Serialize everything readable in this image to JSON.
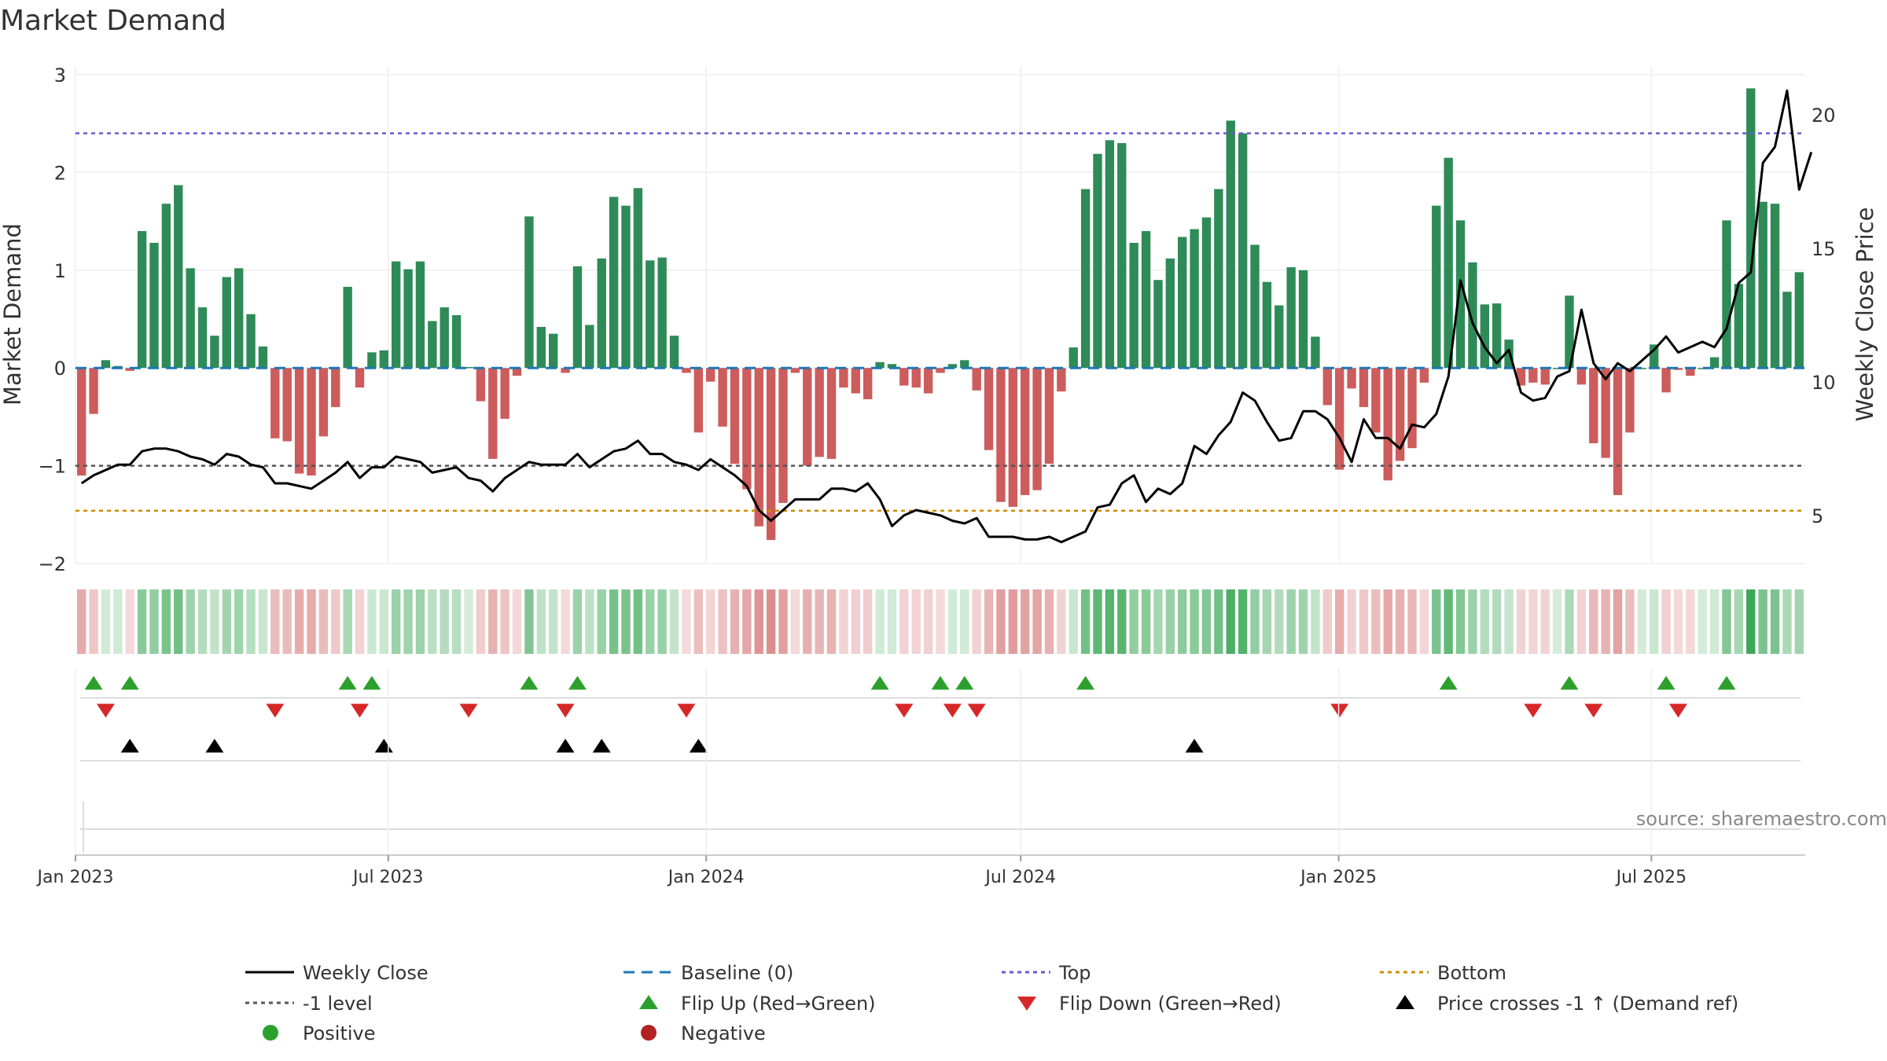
{
  "chart_data": {
    "type": "bar",
    "title": "Market Demand",
    "ylabel": "Market Demand",
    "y2label": "Weekly Close Price",
    "ylim": [
      -2.0,
      3.0
    ],
    "yticks": [
      "3",
      "2",
      "1",
      "0",
      "−1",
      "−2"
    ],
    "yticks_values": [
      3,
      2,
      1,
      0,
      -1,
      -2
    ],
    "y2lim": [
      3.2,
      21.5
    ],
    "y2ticks": [
      "20",
      "15",
      "10",
      "5"
    ],
    "y2ticks_values": [
      20,
      15,
      10,
      5
    ],
    "x_start": "2023-01-01",
    "x_end": "2025-09-28",
    "xticks": [
      {
        "label": "Jan 2023",
        "date": "2023-01-01"
      },
      {
        "label": "Jul 2023",
        "date": "2023-07-01"
      },
      {
        "label": "Jan 2024",
        "date": "2024-01-01"
      },
      {
        "label": "Jul 2024",
        "date": "2024-07-01"
      },
      {
        "label": "Jan 2025",
        "date": "2025-01-01"
      },
      {
        "label": "Jul 2025",
        "date": "2025-07-01"
      }
    ],
    "demand": [
      -1.1,
      -0.47,
      0.08,
      0.02,
      -0.03,
      1.4,
      1.28,
      1.68,
      1.87,
      1.02,
      0.62,
      0.33,
      0.93,
      1.02,
      0.55,
      0.22,
      -0.72,
      -0.75,
      -1.08,
      -1.1,
      -0.7,
      -0.4,
      0.83,
      -0.2,
      0.16,
      0.18,
      1.09,
      1.01,
      1.09,
      0.48,
      0.62,
      0.54,
      0.01,
      -0.34,
      -0.93,
      -0.52,
      -0.08,
      1.55,
      0.42,
      0.35,
      -0.05,
      1.04,
      0.44,
      1.12,
      1.75,
      1.66,
      1.84,
      1.1,
      1.13,
      0.33,
      -0.05,
      -0.66,
      -0.14,
      -0.6,
      -0.98,
      -1.24,
      -1.62,
      -1.76,
      -1.38,
      -0.05,
      -1.0,
      -0.91,
      -0.93,
      -0.2,
      -0.26,
      -0.32,
      0.06,
      0.04,
      -0.18,
      -0.2,
      -0.26,
      -0.05,
      0.04,
      0.08,
      -0.23,
      -0.84,
      -1.37,
      -1.42,
      -1.3,
      -1.25,
      -0.98,
      -0.24,
      0.21,
      1.83,
      2.19,
      2.33,
      2.3,
      1.28,
      1.4,
      0.9,
      1.12,
      1.34,
      1.42,
      1.54,
      1.83,
      2.53,
      2.4,
      1.26,
      0.88,
      0.64,
      1.03,
      1.0,
      0.32,
      -0.38,
      -1.04,
      -0.21,
      -0.4,
      -0.66,
      -1.15,
      -0.95,
      -0.82,
      -0.15,
      1.66,
      2.15,
      1.51,
      1.08,
      0.65,
      0.66,
      0.29,
      -0.18,
      -0.15,
      -0.17,
      0.0,
      0.74,
      -0.17,
      -0.77,
      -0.92,
      -1.3,
      -0.66,
      0.0,
      0.24,
      -0.25,
      -0.02,
      -0.08,
      0.0,
      0.11,
      1.51,
      0.86,
      2.86,
      1.7,
      1.68,
      0.78,
      0.98
    ],
    "close": [
      6.2,
      6.5,
      6.7,
      6.9,
      6.9,
      7.4,
      7.5,
      7.5,
      7.4,
      7.2,
      7.1,
      6.9,
      7.3,
      7.2,
      6.9,
      6.8,
      6.2,
      6.2,
      6.1,
      6.0,
      6.3,
      6.6,
      7.0,
      6.4,
      6.8,
      6.8,
      7.2,
      7.1,
      7.0,
      6.6,
      6.7,
      6.8,
      6.4,
      6.3,
      5.9,
      6.4,
      6.7,
      7.0,
      6.9,
      6.9,
      6.9,
      7.3,
      6.8,
      7.1,
      7.4,
      7.5,
      7.8,
      7.3,
      7.3,
      7.0,
      6.9,
      6.7,
      7.1,
      6.8,
      6.5,
      6.1,
      5.2,
      4.8,
      5.2,
      5.6,
      5.6,
      5.6,
      6.0,
      6.0,
      5.9,
      6.2,
      5.6,
      4.6,
      5.0,
      5.2,
      5.1,
      5.0,
      4.8,
      4.7,
      4.9,
      4.2,
      4.2,
      4.2,
      4.1,
      4.1,
      4.2,
      4.0,
      4.2,
      4.4,
      5.3,
      5.4,
      6.2,
      6.5,
      5.5,
      6.0,
      5.8,
      6.2,
      7.6,
      7.3,
      8.0,
      8.5,
      9.6,
      9.3,
      8.5,
      7.8,
      7.9,
      8.9,
      8.9,
      8.6,
      7.9,
      7.0,
      8.6,
      7.9,
      7.9,
      7.5,
      8.4,
      8.3,
      8.8,
      10.2,
      13.8,
      12.2,
      11.3,
      10.7,
      11.2,
      9.6,
      9.3,
      9.4,
      10.2,
      10.4,
      12.7,
      10.7,
      10.1,
      10.7,
      10.4,
      10.8,
      11.2,
      11.7,
      11.1,
      11.3,
      11.5,
      11.3,
      12.0,
      13.7,
      14.1,
      18.2,
      18.8,
      20.9,
      17.2,
      18.6
    ],
    "top_level": 2.4,
    "minus_one_level": -1.0,
    "bottom_level": -1.46,
    "flip_up_weeks": [
      1,
      4,
      22,
      24,
      37,
      41,
      66,
      71,
      73,
      83,
      113,
      123,
      131,
      136
    ],
    "flip_down_weeks": [
      2,
      16,
      23,
      32,
      40,
      50,
      68,
      72,
      74,
      104,
      120,
      125,
      132
    ],
    "price_cross_weeks": [
      4,
      11,
      25,
      40,
      43,
      51,
      92
    ],
    "legend": [
      {
        "label": "Weekly Close",
        "style": "line-solid",
        "color": "#000000"
      },
      {
        "label": "Baseline (0)",
        "style": "line-dash",
        "color": "#1f77b4"
      },
      {
        "label": "Top",
        "style": "line-dot",
        "color": "#6a5acd"
      },
      {
        "label": "Bottom",
        "style": "line-dot",
        "color": "#cc8c00"
      },
      {
        "label": "-1 level",
        "style": "line-dot",
        "color": "#555555"
      },
      {
        "label": "Flip Up (Red→Green)",
        "style": "triangle-up",
        "color": "#2ca02c"
      },
      {
        "label": "Flip Down (Green→Red)",
        "style": "triangle-down",
        "color": "#d62728"
      },
      {
        "label": "Price crosses -1 ↑ (Demand ref)",
        "style": "triangle-up",
        "color": "#000000"
      },
      {
        "label": "Positive",
        "style": "circle",
        "color": "#2ca02c"
      },
      {
        "label": "Negative",
        "style": "circle",
        "color": "#b22222"
      }
    ],
    "source": "source: sharemaestro.com"
  },
  "colors": {
    "positive": "#2e8b57",
    "negative": "#cd5c5c",
    "close_line": "#000000",
    "baseline": "#1f77b4",
    "top": "#6a5acd",
    "bottom": "#cc8c00",
    "minus_one": "#555555",
    "flip_up": "#2ca02c",
    "flip_down": "#d62728",
    "grid": "#eeeeee"
  }
}
